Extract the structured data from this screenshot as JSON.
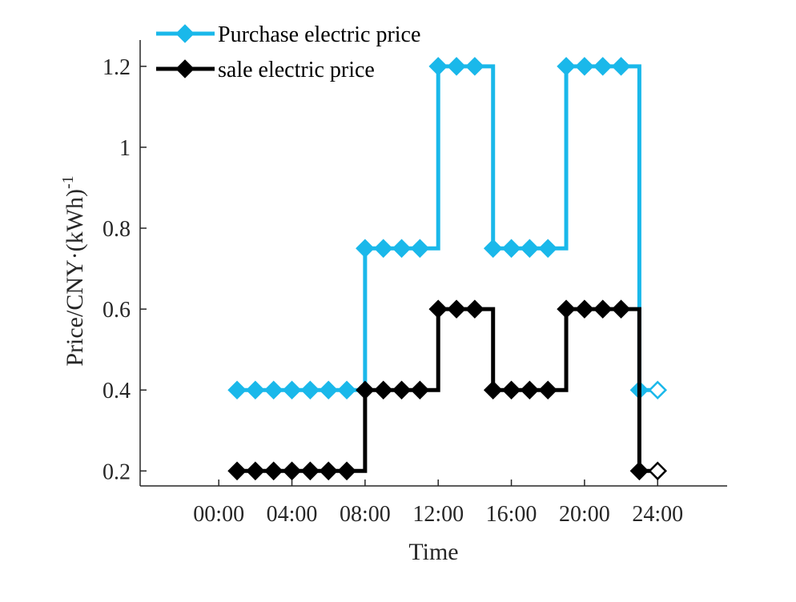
{
  "chart_data": {
    "type": "line",
    "step": "post",
    "xlabel": "Time",
    "ylabel": "Price/CNY·(kWh)",
    "ylabel_superscript": "-1",
    "x_tick_labels": [
      "00:00",
      "04:00",
      "08:00",
      "12:00",
      "16:00",
      "20:00",
      "24:00"
    ],
    "x_tick_hours": [
      0,
      4,
      8,
      12,
      16,
      20,
      24
    ],
    "xlim": [
      -4.3,
      27.8
    ],
    "ylim": [
      0.163,
      1.265
    ],
    "y_ticks": [
      0.2,
      0.4,
      0.6,
      0.8,
      1.0,
      1.2
    ],
    "y_tick_labels": [
      "0.2",
      "0.4",
      "0.6",
      "0.8",
      "1",
      "1.2"
    ],
    "legend_position": "top-left",
    "x": [
      1,
      2,
      3,
      4,
      5,
      6,
      7,
      8,
      9,
      10,
      11,
      12,
      13,
      14,
      15,
      16,
      17,
      18,
      19,
      20,
      21,
      22,
      23,
      24
    ],
    "series": [
      {
        "name": "Purchase electric price",
        "color": "#1AB8EA",
        "marker": "diamond",
        "values": [
          0.4,
          0.4,
          0.4,
          0.4,
          0.4,
          0.4,
          0.4,
          0.75,
          0.75,
          0.75,
          0.75,
          1.2,
          1.2,
          1.2,
          0.75,
          0.75,
          0.75,
          0.75,
          1.2,
          1.2,
          1.2,
          1.2,
          0.4,
          0.4
        ]
      },
      {
        "name": "sale electric price",
        "color": "#000000",
        "marker": "diamond",
        "values": [
          0.2,
          0.2,
          0.2,
          0.2,
          0.2,
          0.2,
          0.2,
          0.4,
          0.4,
          0.4,
          0.4,
          0.6,
          0.6,
          0.6,
          0.4,
          0.4,
          0.4,
          0.4,
          0.6,
          0.6,
          0.6,
          0.6,
          0.2,
          0.2
        ]
      }
    ]
  }
}
